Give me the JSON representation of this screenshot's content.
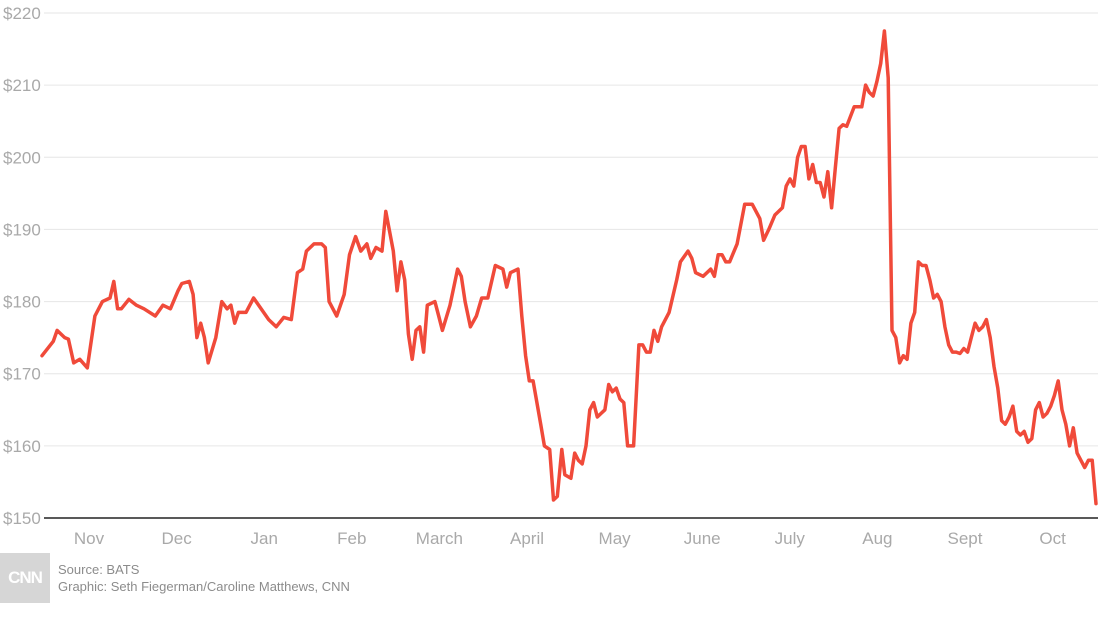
{
  "chart_data": {
    "type": "line",
    "y_tick_labels": [
      "$220",
      "$210",
      "$200",
      "$190",
      "$180",
      "$170",
      "$160",
      "$150"
    ],
    "y_ticks": [
      220,
      210,
      200,
      190,
      180,
      170,
      160,
      150
    ],
    "ylim": [
      150,
      220
    ],
    "x_tick_labels": [
      "Nov",
      "Dec",
      "Jan",
      "Feb",
      "March",
      "April",
      "May",
      "June",
      "July",
      "Aug",
      "Sept",
      "Oct"
    ],
    "grid": true,
    "line_color": "#f04a3a",
    "series": [
      {
        "values": [
          [
            0.0,
            172.5
          ],
          [
            0.15,
            174.5
          ],
          [
            0.2,
            176
          ],
          [
            0.3,
            175
          ],
          [
            0.35,
            174.8
          ],
          [
            0.42,
            171.5
          ],
          [
            0.5,
            172
          ],
          [
            0.6,
            170.8
          ],
          [
            0.7,
            178
          ],
          [
            0.8,
            180
          ],
          [
            0.9,
            180.5
          ],
          [
            0.95,
            182.8
          ],
          [
            1.0,
            179
          ],
          [
            1.05,
            179
          ],
          [
            1.15,
            180.3
          ],
          [
            1.25,
            179.5
          ],
          [
            1.35,
            179
          ],
          [
            1.5,
            178
          ],
          [
            1.6,
            179.5
          ],
          [
            1.7,
            179
          ],
          [
            1.8,
            181.5
          ],
          [
            1.85,
            182.5
          ],
          [
            1.95,
            182.8
          ],
          [
            2.0,
            181
          ],
          [
            2.05,
            175
          ],
          [
            2.1,
            177
          ],
          [
            2.15,
            175
          ],
          [
            2.2,
            171.5
          ],
          [
            2.3,
            175
          ],
          [
            2.38,
            180
          ],
          [
            2.45,
            179
          ],
          [
            2.5,
            179.5
          ],
          [
            2.55,
            177
          ],
          [
            2.6,
            178.5
          ],
          [
            2.7,
            178.5
          ],
          [
            2.8,
            180.5
          ],
          [
            2.9,
            179
          ],
          [
            3.0,
            177.5
          ],
          [
            3.1,
            176.5
          ],
          [
            3.2,
            177.8
          ],
          [
            3.3,
            177.5
          ],
          [
            3.38,
            184
          ],
          [
            3.45,
            184.5
          ],
          [
            3.5,
            187
          ],
          [
            3.6,
            188
          ],
          [
            3.7,
            188
          ],
          [
            3.75,
            187.5
          ],
          [
            3.8,
            180
          ],
          [
            3.9,
            178
          ],
          [
            4.0,
            181
          ],
          [
            4.07,
            186.5
          ],
          [
            4.15,
            189
          ],
          [
            4.22,
            187
          ],
          [
            4.3,
            188
          ],
          [
            4.35,
            186
          ],
          [
            4.42,
            187.5
          ],
          [
            4.5,
            187
          ],
          [
            4.55,
            192.5
          ],
          [
            4.65,
            187
          ],
          [
            4.7,
            181.5
          ],
          [
            4.75,
            185.5
          ],
          [
            4.8,
            183
          ],
          [
            4.85,
            175.5
          ],
          [
            4.9,
            172
          ],
          [
            4.95,
            176
          ],
          [
            5.0,
            176.5
          ],
          [
            5.05,
            173
          ],
          [
            5.1,
            179.5
          ],
          [
            5.2,
            180
          ],
          [
            5.25,
            178
          ],
          [
            5.3,
            176
          ],
          [
            5.4,
            179.5
          ],
          [
            5.5,
            184.5
          ],
          [
            5.55,
            183.5
          ],
          [
            5.6,
            180
          ],
          [
            5.67,
            176.5
          ],
          [
            5.75,
            178
          ],
          [
            5.82,
            180.5
          ],
          [
            5.9,
            180.5
          ],
          [
            6.0,
            185
          ],
          [
            6.1,
            184.5
          ],
          [
            6.15,
            182
          ],
          [
            6.2,
            184
          ],
          [
            6.3,
            184.5
          ],
          [
            6.35,
            178
          ],
          [
            6.4,
            172.5
          ],
          [
            6.45,
            169
          ],
          [
            6.5,
            169
          ],
          [
            6.6,
            163
          ],
          [
            6.65,
            160
          ],
          [
            6.72,
            159.5
          ],
          [
            6.77,
            152.5
          ],
          [
            6.82,
            153
          ],
          [
            6.88,
            159.5
          ],
          [
            6.92,
            156
          ],
          [
            7.0,
            155.5
          ],
          [
            7.05,
            159
          ],
          [
            7.1,
            158
          ],
          [
            7.15,
            157.5
          ],
          [
            7.2,
            160
          ],
          [
            7.25,
            165
          ],
          [
            7.3,
            166
          ],
          [
            7.35,
            164
          ],
          [
            7.4,
            164.5
          ],
          [
            7.45,
            165
          ],
          [
            7.5,
            168.5
          ],
          [
            7.55,
            167.5
          ],
          [
            7.6,
            168
          ],
          [
            7.65,
            166.5
          ],
          [
            7.7,
            166
          ],
          [
            7.75,
            160
          ],
          [
            7.83,
            160
          ],
          [
            7.9,
            174
          ],
          [
            7.95,
            174
          ],
          [
            8.0,
            173
          ],
          [
            8.05,
            173
          ],
          [
            8.1,
            176
          ],
          [
            8.15,
            174.5
          ],
          [
            8.2,
            176.5
          ],
          [
            8.3,
            178.5
          ],
          [
            8.4,
            183
          ],
          [
            8.45,
            185.5
          ],
          [
            8.55,
            187
          ],
          [
            8.6,
            186
          ],
          [
            8.65,
            184
          ],
          [
            8.75,
            183.5
          ],
          [
            8.85,
            184.5
          ],
          [
            8.9,
            183.5
          ],
          [
            8.95,
            186.5
          ],
          [
            9.0,
            186.5
          ],
          [
            9.05,
            185.5
          ],
          [
            9.1,
            185.5
          ],
          [
            9.2,
            188
          ],
          [
            9.3,
            193.5
          ],
          [
            9.4,
            193.5
          ],
          [
            9.5,
            191.5
          ],
          [
            9.55,
            188.5
          ],
          [
            9.62,
            190
          ],
          [
            9.7,
            192
          ],
          [
            9.8,
            193
          ],
          [
            9.85,
            196
          ],
          [
            9.9,
            197
          ],
          [
            9.95,
            196
          ],
          [
            10.0,
            200
          ],
          [
            10.05,
            201.5
          ],
          [
            10.1,
            201.5
          ],
          [
            10.15,
            197
          ],
          [
            10.2,
            199
          ],
          [
            10.25,
            196.5
          ],
          [
            10.3,
            196.5
          ],
          [
            10.35,
            194.5
          ],
          [
            10.4,
            198
          ],
          [
            10.45,
            193
          ],
          [
            10.5,
            198.5
          ],
          [
            10.55,
            204
          ],
          [
            10.6,
            204.5
          ],
          [
            10.65,
            204.3
          ],
          [
            10.75,
            207
          ],
          [
            10.85,
            207
          ],
          [
            10.9,
            210
          ],
          [
            10.95,
            209
          ],
          [
            11.0,
            208.5
          ],
          [
            11.05,
            210.5
          ],
          [
            11.1,
            213
          ],
          [
            11.15,
            217.5
          ],
          [
            11.2,
            211
          ],
          [
            11.25,
            176
          ],
          [
            11.3,
            175
          ],
          [
            11.35,
            171.5
          ],
          [
            11.4,
            172.5
          ],
          [
            11.45,
            172
          ],
          [
            11.5,
            177
          ],
          [
            11.55,
            178.5
          ],
          [
            11.6,
            185.5
          ],
          [
            11.65,
            185
          ],
          [
            11.7,
            185
          ],
          [
            11.75,
            183
          ],
          [
            11.8,
            180.5
          ],
          [
            11.85,
            181
          ],
          [
            11.9,
            180
          ],
          [
            11.95,
            176.5
          ],
          [
            12.0,
            174
          ],
          [
            12.05,
            173
          ],
          [
            12.1,
            173
          ],
          [
            12.15,
            172.8
          ],
          [
            12.2,
            173.5
          ],
          [
            12.25,
            173
          ],
          [
            12.3,
            175
          ],
          [
            12.35,
            177
          ],
          [
            12.4,
            176
          ],
          [
            12.45,
            176.5
          ],
          [
            12.5,
            177.5
          ],
          [
            12.55,
            175
          ],
          [
            12.6,
            171
          ],
          [
            12.65,
            168
          ],
          [
            12.7,
            163.5
          ],
          [
            12.75,
            163
          ],
          [
            12.8,
            164
          ],
          [
            12.85,
            165.5
          ],
          [
            12.9,
            162
          ],
          [
            12.95,
            161.5
          ],
          [
            13.0,
            162
          ],
          [
            13.05,
            160.5
          ],
          [
            13.1,
            161
          ],
          [
            13.15,
            165
          ],
          [
            13.2,
            166
          ],
          [
            13.25,
            164
          ],
          [
            13.3,
            164.5
          ],
          [
            13.35,
            165.5
          ],
          [
            13.4,
            167
          ],
          [
            13.45,
            169
          ],
          [
            13.5,
            165
          ],
          [
            13.55,
            163
          ],
          [
            13.6,
            160
          ],
          [
            13.65,
            162.5
          ],
          [
            13.7,
            159
          ],
          [
            13.75,
            158
          ],
          [
            13.8,
            157
          ],
          [
            13.85,
            158
          ],
          [
            13.9,
            158
          ],
          [
            13.95,
            152
          ]
        ]
      }
    ]
  },
  "footer": {
    "logo_text": "CNN",
    "source": "Source: BATS",
    "graphic": "Graphic: Seth Fiegerman/Caroline Matthews, CNN"
  }
}
